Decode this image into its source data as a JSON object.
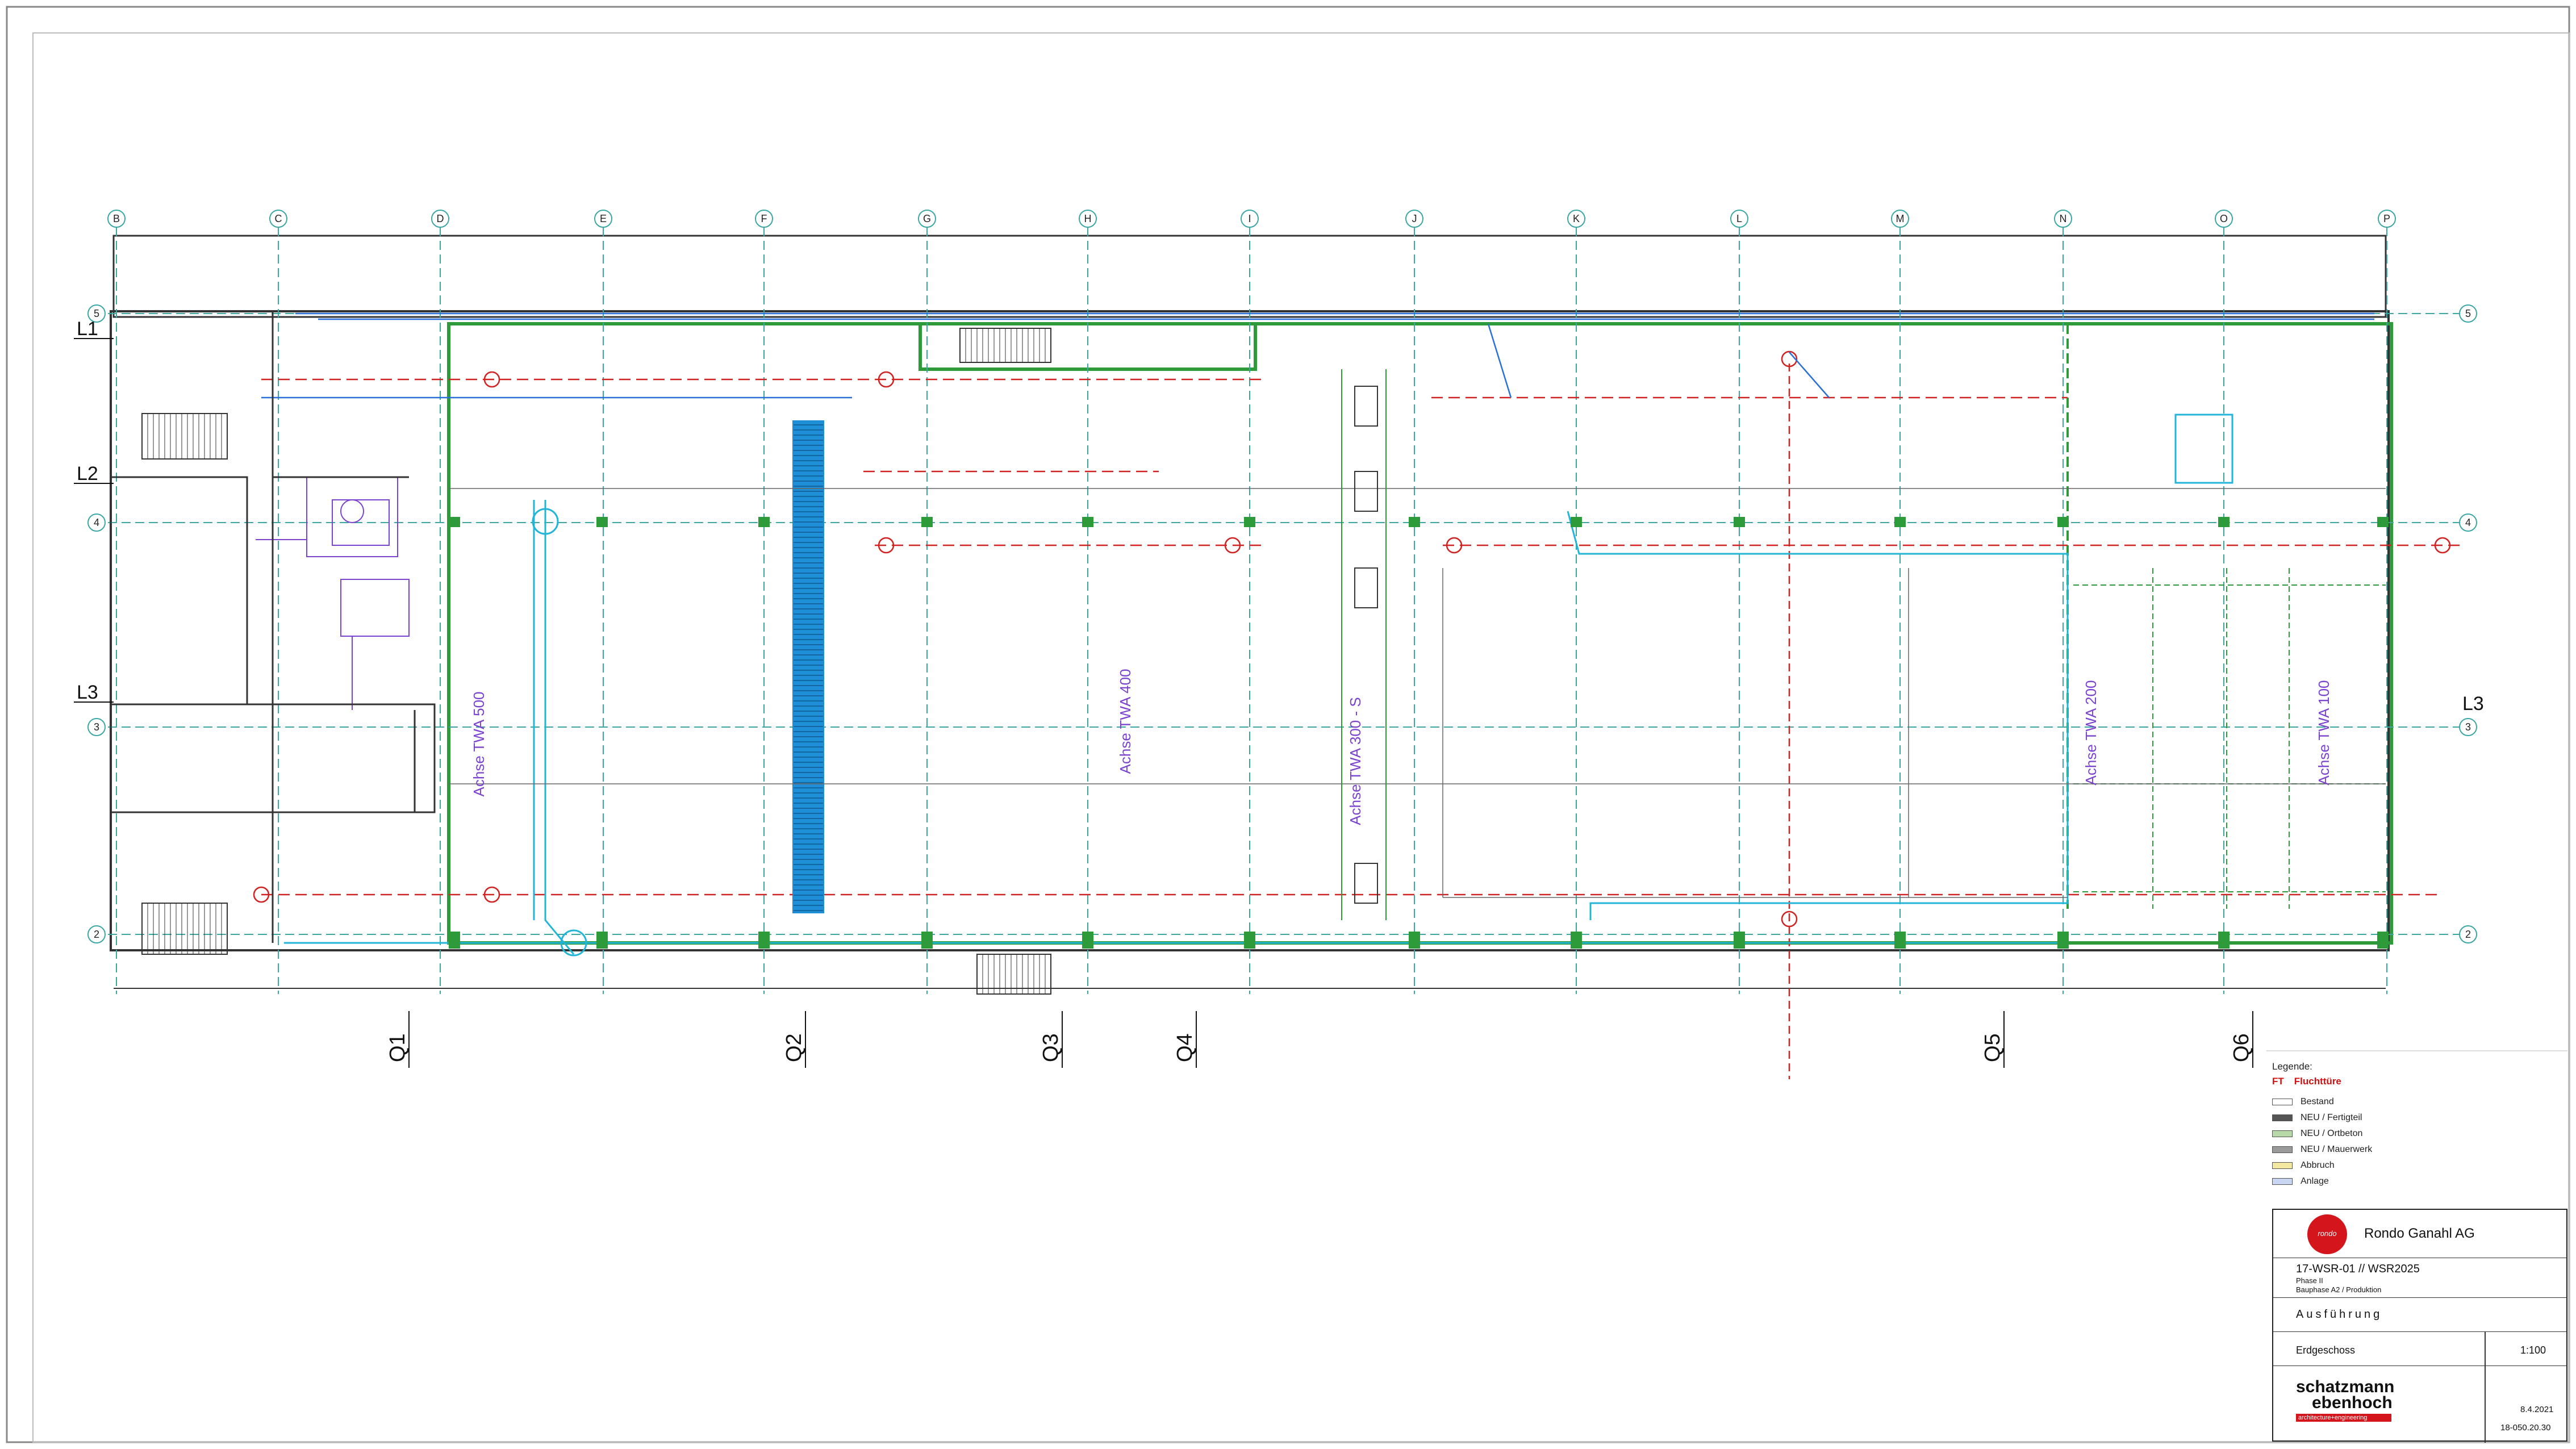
{
  "drawing": {
    "columns": [
      "B",
      "C",
      "D",
      "E",
      "F",
      "G",
      "H",
      "I",
      "J",
      "K",
      "L",
      "M",
      "N",
      "O",
      "P"
    ],
    "rows": [
      "5",
      "4",
      "3",
      "2"
    ],
    "levels": [
      "L1",
      "L2",
      "L3"
    ],
    "sections": [
      "Q1",
      "Q2",
      "Q3",
      "Q4",
      "Q5",
      "Q6"
    ],
    "axis_labels": [
      "Achse TWA 500",
      "Achse TWA 400",
      "Achse TWA 300 - S",
      "Achse TWA 200",
      "Achse TWA 100"
    ],
    "colors": {
      "grid": "#3aa7a5",
      "wall_new": "#2e9b3a",
      "wall_existing": "#333333",
      "red_line": "#d12222",
      "blue_duct": "#2a6fd6",
      "cyan_pipe": "#22b5d8",
      "purple": "#7b43d0",
      "conveyor": "#1e8ed6"
    }
  },
  "legend": {
    "title": "Legende:",
    "ft_code": "FT",
    "ft_label": "Fluchttüre",
    "items": [
      {
        "label": "Bestand",
        "color": "#ffffff"
      },
      {
        "label": "NEU / Fertigteil",
        "color": "#555555"
      },
      {
        "label": "NEU / Ortbeton",
        "color": "#b7d9a8"
      },
      {
        "label": "NEU / Mauerwerk",
        "color": "#9a9a9a"
      },
      {
        "label": "Abbruch",
        "color": "#f4e7a0"
      },
      {
        "label": "Anlage",
        "color": "#c9d6f3"
      }
    ]
  },
  "title_block": {
    "client": "Rondo Ganahl AG",
    "logo_text": "rondo",
    "project": "17-WSR-01 // WSR2025",
    "phase": "Phase II",
    "subtitle": "Bauphase A2 / Produktion",
    "status": "Ausführung",
    "plan_name": "Erdgeschoss",
    "scale": "1:100",
    "architect_line1": "schatzmann",
    "architect_line2": "ebenhoch",
    "architect_tagline": "architecture+engineering",
    "date": "8.4.2021",
    "plan_number": "18-050.20.30"
  }
}
